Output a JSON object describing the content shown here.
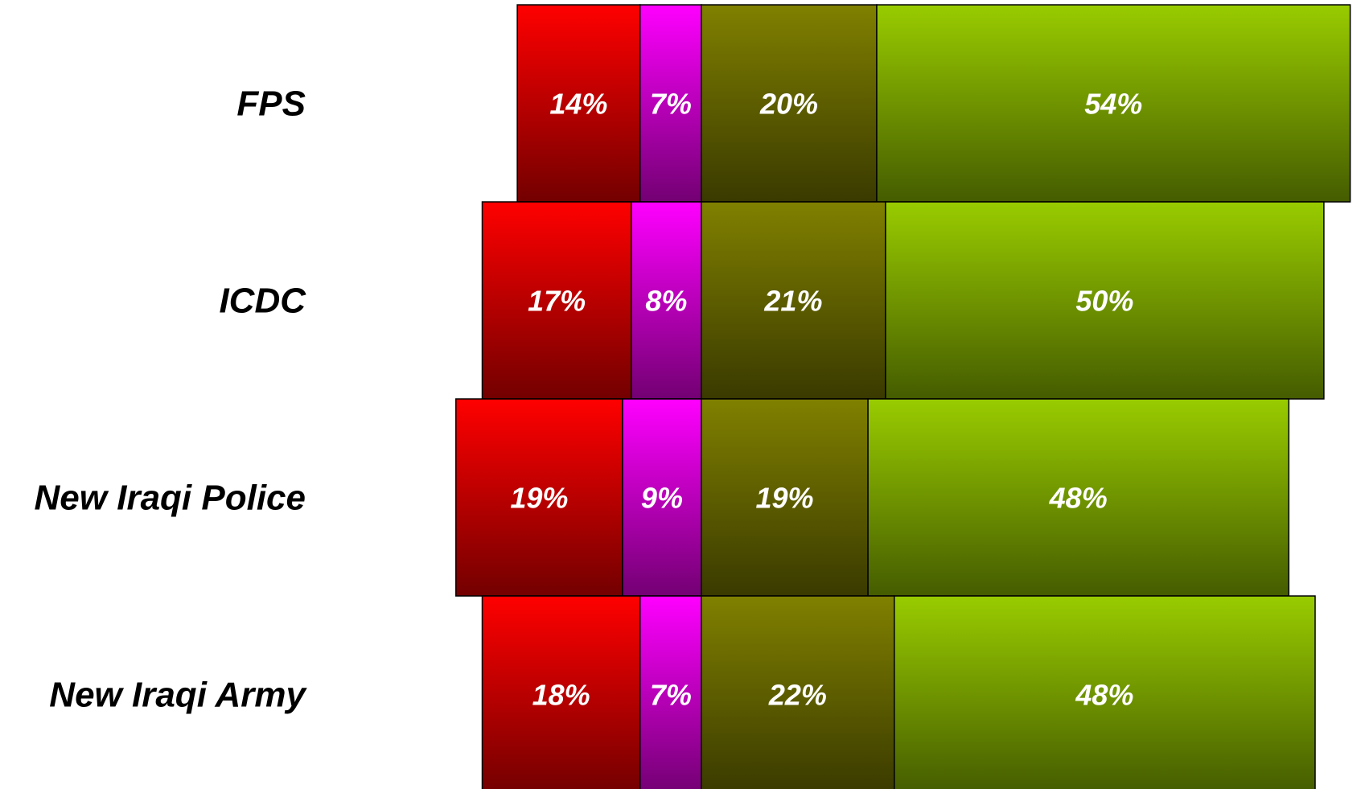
{
  "chart_data": {
    "type": "bar",
    "orientation": "horizontal",
    "stacked": true,
    "diverging": true,
    "categories": [
      "FPS",
      "ICDC",
      "New Iraqi Police",
      "New Iraqi Army"
    ],
    "series": [
      {
        "values": [
          14,
          17,
          19,
          18
        ],
        "color": "#ff0000",
        "labels": [
          "14%",
          "17%",
          "19%",
          "18%"
        ]
      },
      {
        "values": [
          7,
          8,
          9,
          7
        ],
        "color": "#ff00ff",
        "labels": [
          "7%",
          "8%",
          "9%",
          "7%"
        ]
      },
      {
        "values": [
          20,
          21,
          19,
          22
        ],
        "color": "#808000",
        "labels": [
          "20%",
          "21%",
          "19%",
          "22%"
        ]
      },
      {
        "values": [
          54,
          50,
          48,
          48
        ],
        "color": "#99cc00",
        "labels": [
          "54%",
          "50%",
          "48%",
          "48%"
        ]
      }
    ],
    "title": "",
    "xlabel": "",
    "ylabel": "",
    "grid": false,
    "legend": "none"
  }
}
